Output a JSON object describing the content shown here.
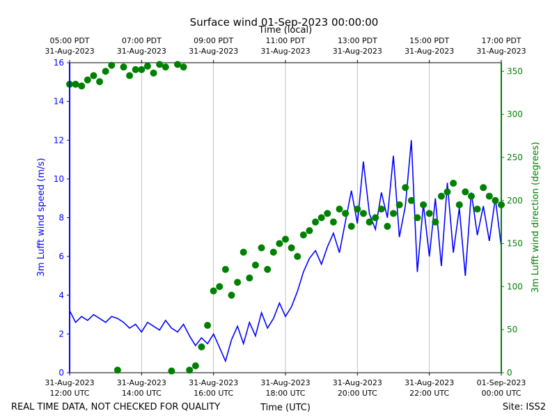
{
  "chart_data": {
    "type": "line",
    "title": "Surface wind 01-Sep-2023 00:00:00",
    "x_label": "Time (UTC)",
    "x2_label": "Time (local)",
    "y_label": "3m Lufft wind speed (m/s)",
    "y2_label": "3m Lufft wind direction (degrees)",
    "footer_left": "REAL TIME DATA, NOT CHECKED FOR QUALITY",
    "footer_right": "Site: ISS2",
    "xlim": [
      "2023-08-31 12:00",
      "2023-09-01 00:00"
    ],
    "xticks": [
      {
        "value": "2023-08-31 12:00",
        "label": [
          "31-Aug-2023",
          "12:00 UTC"
        ]
      },
      {
        "value": "2023-08-31 14:00",
        "label": [
          "31-Aug-2023",
          "14:00 UTC"
        ]
      },
      {
        "value": "2023-08-31 16:00",
        "label": [
          "31-Aug-2023",
          "16:00 UTC"
        ]
      },
      {
        "value": "2023-08-31 18:00",
        "label": [
          "31-Aug-2023",
          "18:00 UTC"
        ]
      },
      {
        "value": "2023-08-31 20:00",
        "label": [
          "31-Aug-2023",
          "20:00 UTC"
        ]
      },
      {
        "value": "2023-08-31 22:00",
        "label": [
          "31-Aug-2023",
          "22:00 UTC"
        ]
      },
      {
        "value": "2023-09-01 00:00",
        "label": [
          "01-Sep-2023",
          "00:00 UTC"
        ]
      }
    ],
    "x2ticks": [
      {
        "value": "2023-08-31 12:00",
        "label": [
          "05:00 PDT",
          "31-Aug-2023"
        ]
      },
      {
        "value": "2023-08-31 14:00",
        "label": [
          "07:00 PDT",
          "31-Aug-2023"
        ]
      },
      {
        "value": "2023-08-31 16:00",
        "label": [
          "09:00 PDT",
          "31-Aug-2023"
        ]
      },
      {
        "value": "2023-08-31 18:00",
        "label": [
          "11:00 PDT",
          "31-Aug-2023"
        ]
      },
      {
        "value": "2023-08-31 20:00",
        "label": [
          "13:00 PDT",
          "31-Aug-2023"
        ]
      },
      {
        "value": "2023-08-31 22:00",
        "label": [
          "15:00 PDT",
          "31-Aug-2023"
        ]
      },
      {
        "value": "2023-09-01 00:00",
        "label": [
          "17:00 PDT",
          "31-Aug-2023"
        ]
      }
    ],
    "ylim": [
      0,
      16
    ],
    "yticks": [
      0,
      2,
      4,
      6,
      8,
      10,
      12,
      14,
      16
    ],
    "y2lim": [
      0,
      360
    ],
    "y2ticks": [
      0,
      50,
      100,
      150,
      200,
      250,
      300,
      350
    ],
    "grid": true,
    "x": [
      "2023-08-31 12:00",
      "2023-08-31 12:10",
      "2023-08-31 12:20",
      "2023-08-31 12:30",
      "2023-08-31 12:40",
      "2023-08-31 12:50",
      "2023-08-31 13:00",
      "2023-08-31 13:10",
      "2023-08-31 13:20",
      "2023-08-31 13:30",
      "2023-08-31 13:40",
      "2023-08-31 13:50",
      "2023-08-31 14:00",
      "2023-08-31 14:10",
      "2023-08-31 14:20",
      "2023-08-31 14:30",
      "2023-08-31 14:40",
      "2023-08-31 14:50",
      "2023-08-31 15:00",
      "2023-08-31 15:10",
      "2023-08-31 15:20",
      "2023-08-31 15:30",
      "2023-08-31 15:40",
      "2023-08-31 15:50",
      "2023-08-31 16:00",
      "2023-08-31 16:10",
      "2023-08-31 16:20",
      "2023-08-31 16:30",
      "2023-08-31 16:40",
      "2023-08-31 16:50",
      "2023-08-31 17:00",
      "2023-08-31 17:10",
      "2023-08-31 17:20",
      "2023-08-31 17:30",
      "2023-08-31 17:40",
      "2023-08-31 17:50",
      "2023-08-31 18:00",
      "2023-08-31 18:10",
      "2023-08-31 18:20",
      "2023-08-31 18:30",
      "2023-08-31 18:40",
      "2023-08-31 18:50",
      "2023-08-31 19:00",
      "2023-08-31 19:10",
      "2023-08-31 19:20",
      "2023-08-31 19:30",
      "2023-08-31 19:40",
      "2023-08-31 19:50",
      "2023-08-31 20:00",
      "2023-08-31 20:10",
      "2023-08-31 20:20",
      "2023-08-31 20:30",
      "2023-08-31 20:40",
      "2023-08-31 20:50",
      "2023-08-31 21:00",
      "2023-08-31 21:10",
      "2023-08-31 21:20",
      "2023-08-31 21:30",
      "2023-08-31 21:40",
      "2023-08-31 21:50",
      "2023-08-31 22:00",
      "2023-08-31 22:10",
      "2023-08-31 22:20",
      "2023-08-31 22:30",
      "2023-08-31 22:40",
      "2023-08-31 22:50",
      "2023-08-31 23:00",
      "2023-08-31 23:10",
      "2023-08-31 23:20",
      "2023-08-31 23:30",
      "2023-08-31 23:40",
      "2023-08-31 23:50",
      "2023-09-01 00:00"
    ],
    "series": [
      {
        "name": "3m Lufft wind speed",
        "type": "line",
        "axis": "y",
        "color": "#0000ff",
        "values": [
          3.2,
          2.6,
          2.9,
          2.7,
          3.0,
          2.8,
          2.6,
          2.9,
          2.8,
          2.6,
          2.3,
          2.5,
          2.1,
          2.6,
          2.4,
          2.2,
          2.7,
          2.3,
          2.1,
          2.5,
          1.9,
          1.4,
          1.8,
          1.5,
          2.0,
          1.3,
          0.6,
          1.7,
          2.4,
          1.5,
          2.6,
          1.9,
          3.1,
          2.3,
          2.8,
          3.6,
          2.9,
          3.4,
          4.2,
          5.2,
          5.9,
          6.3,
          5.6,
          6.5,
          7.2,
          6.2,
          7.8,
          9.4,
          7.7,
          10.9,
          8.2,
          7.4,
          9.3,
          8.0,
          11.2,
          7.0,
          8.6,
          12.0,
          5.2,
          8.7,
          6.0,
          9.0,
          5.5,
          9.8,
          6.2,
          8.5,
          5.0,
          9.3,
          7.1,
          8.6,
          6.8,
          9.0,
          6.5
        ]
      },
      {
        "name": "3m Lufft wind direction",
        "type": "scatter",
        "axis": "y2",
        "color": "#008000",
        "values": [
          335,
          335,
          333,
          340,
          345,
          338,
          350,
          357,
          3,
          355,
          345,
          352,
          352,
          356,
          348,
          358,
          355,
          2,
          358,
          355,
          3,
          8,
          30,
          55,
          95,
          100,
          120,
          90,
          105,
          140,
          110,
          125,
          145,
          120,
          140,
          150,
          155,
          145,
          135,
          160,
          165,
          175,
          180,
          185,
          175,
          190,
          185,
          170,
          190,
          185,
          175,
          180,
          190,
          170,
          185,
          195,
          215,
          200,
          180,
          195,
          185,
          175,
          205,
          210,
          220,
          195,
          210,
          205,
          190,
          215,
          205,
          200,
          195
        ]
      }
    ]
  }
}
